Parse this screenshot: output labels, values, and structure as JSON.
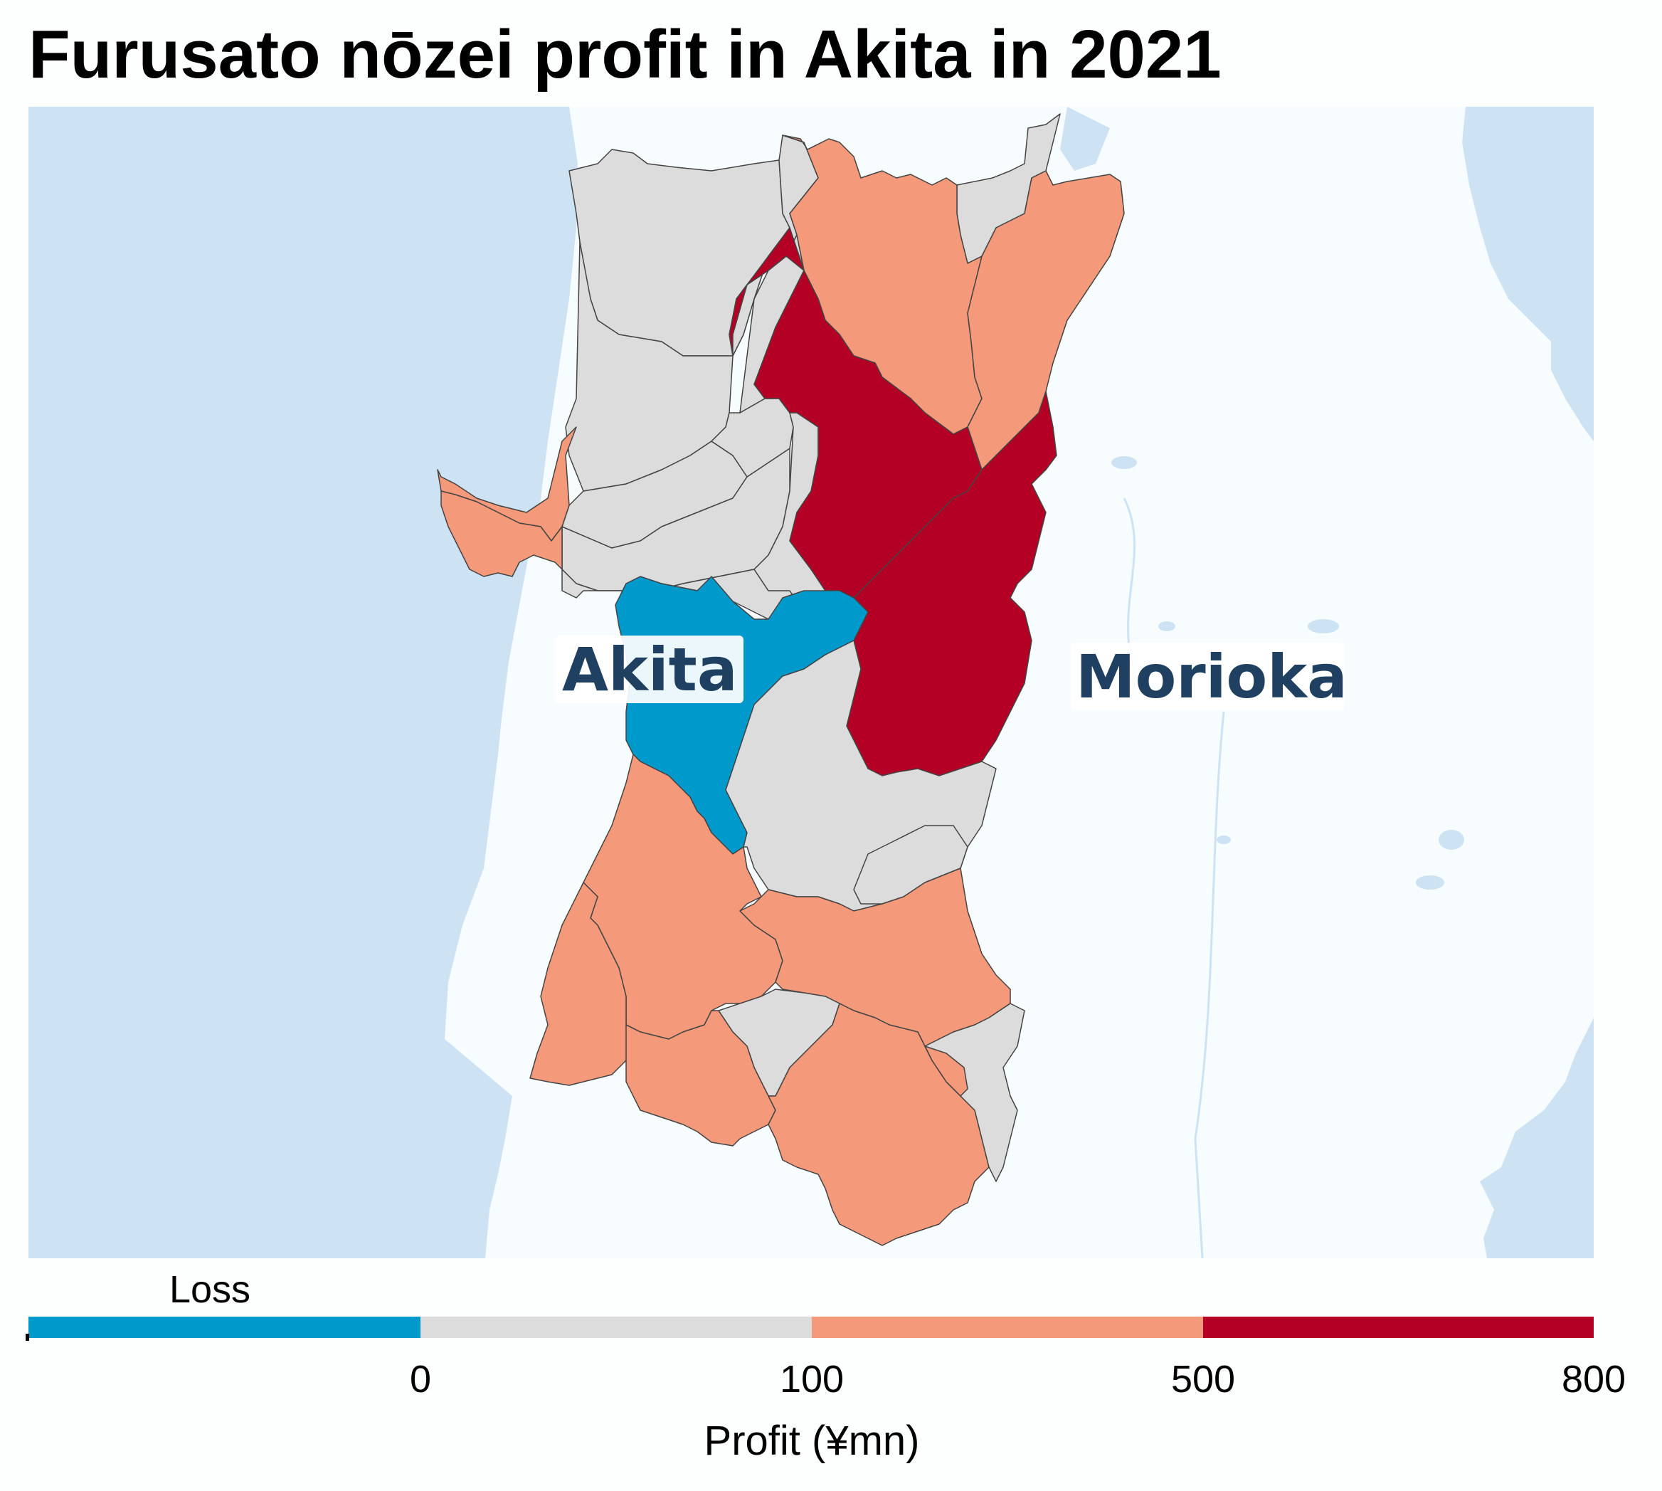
{
  "title": "Furusato nōzei profit in Akita in 2021",
  "colors": {
    "sea": "#cde3f4",
    "land_outside": "#f7fcff",
    "loss": "#0099cc",
    "band_0_100": "#dddcdc",
    "band_100_500": "#f4997a",
    "band_500_800": "#b30024",
    "label_text": "#1f4060"
  },
  "map": {
    "city_labels": [
      {
        "name": "Akita"
      },
      {
        "name": "Morioka"
      }
    ]
  },
  "legend": {
    "loss_label": "Loss",
    "bins": [
      {
        "label": "Loss",
        "color": "#0099cc"
      },
      {
        "label": "0–100",
        "color": "#dddcdc"
      },
      {
        "label": "100–500",
        "color": "#f4997a"
      },
      {
        "label": "500–800",
        "color": "#b30024"
      }
    ],
    "ticks": [
      "0",
      "100",
      "500",
      "800"
    ],
    "axis_title": "Profit (¥mn)"
  }
}
